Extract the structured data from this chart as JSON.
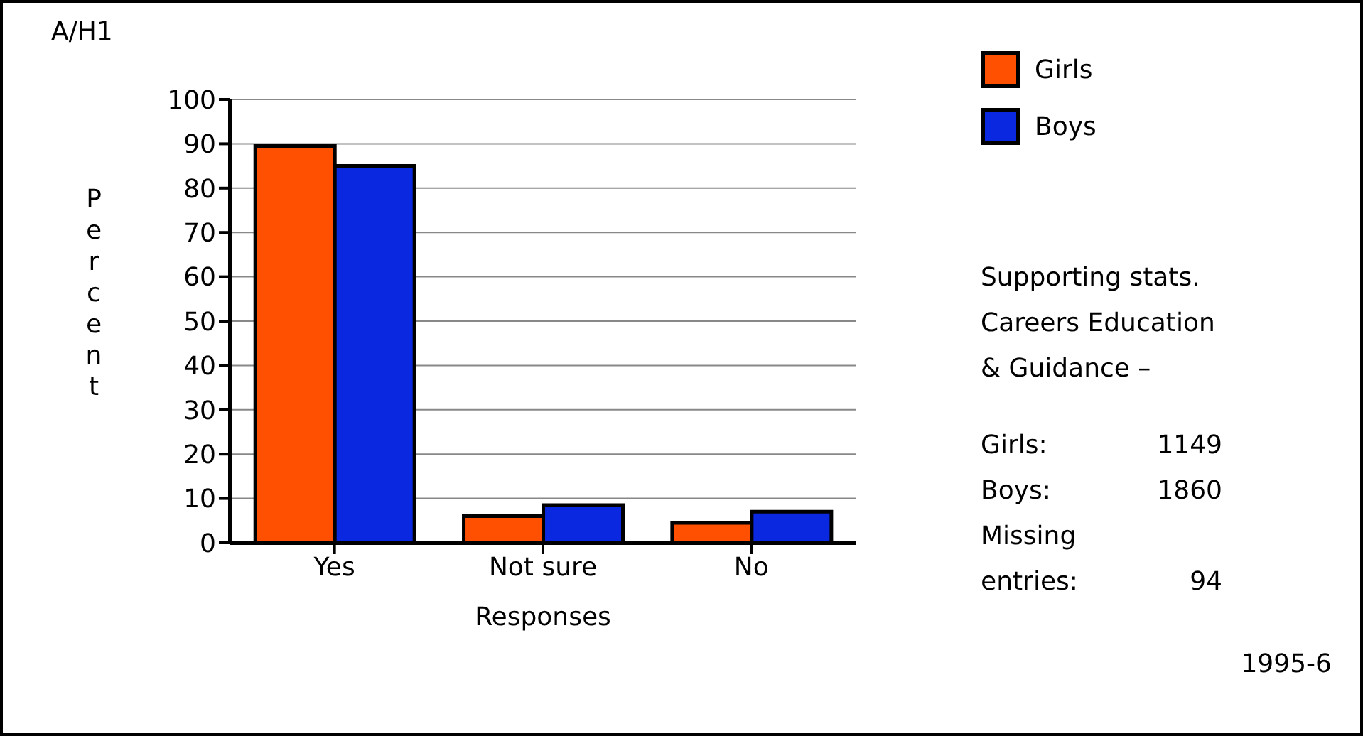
{
  "chart_data": {
    "type": "bar",
    "title": "A/H1",
    "xlabel": "Responses",
    "ylabel": "Percent",
    "categories": [
      "Yes",
      "Not sure",
      "No"
    ],
    "series": [
      {
        "name": "Girls",
        "color": "#ff4f00",
        "values": [
          89.5,
          6,
          4.5
        ]
      },
      {
        "name": "Boys",
        "color": "#0a28e0",
        "values": [
          85,
          8.5,
          7
        ]
      }
    ],
    "ylim": [
      0,
      100
    ],
    "yticks": [
      0,
      10,
      20,
      30,
      40,
      50,
      60,
      70,
      80,
      90,
      100
    ],
    "grid": "y",
    "legend": "top right",
    "annotations": [
      "Supporting stats.\nCareers Education\n& Guidance –",
      "Girls:\t1149",
      "Boys:\t1860",
      "Missing\nentries:\t94",
      "1995-6"
    ]
  }
}
